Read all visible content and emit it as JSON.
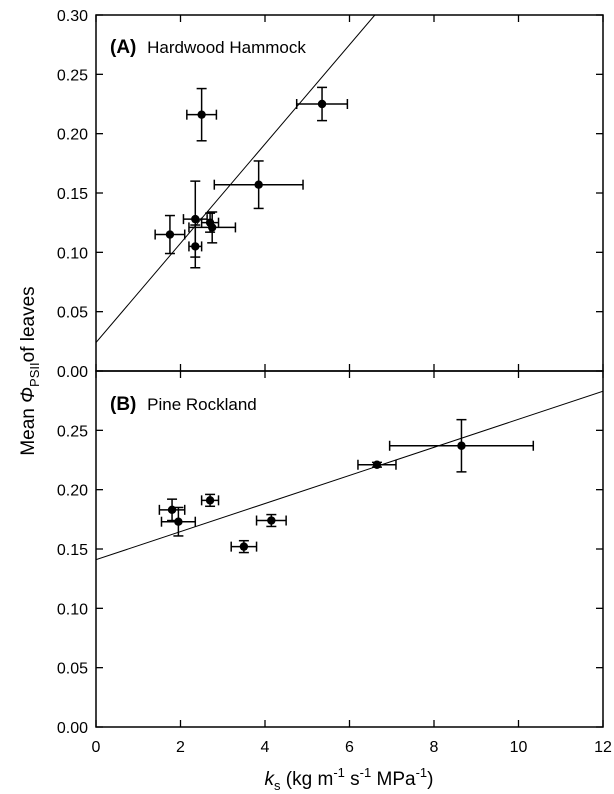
{
  "chart_data": [
    {
      "type": "scatter",
      "panel_letter": "(A)",
      "title": "Hardwood Hammock",
      "xlim": [
        0,
        12
      ],
      "ylim": [
        0,
        0.3
      ],
      "yticks": [
        "0.00",
        "0.05",
        "0.10",
        "0.15",
        "0.20",
        "0.25",
        "0.30"
      ],
      "points": [
        {
          "x": 1.75,
          "y": 0.115,
          "xerr": 0.35,
          "yerr": 0.016
        },
        {
          "x": 2.35,
          "y": 0.128,
          "xerr": 0.28,
          "yerr": 0.032
        },
        {
          "x": 2.35,
          "y": 0.105,
          "xerr": 0.15,
          "yerr": 0.018
        },
        {
          "x": 2.5,
          "y": 0.216,
          "xerr": 0.35,
          "yerr": 0.022
        },
        {
          "x": 2.7,
          "y": 0.125,
          "xerr": 0.2,
          "yerr": 0.008
        },
        {
          "x": 2.75,
          "y": 0.121,
          "xerr": 0.55,
          "yerr": 0.013
        },
        {
          "x": 3.85,
          "y": 0.157,
          "xerr": 1.05,
          "yerr": 0.02
        },
        {
          "x": 5.35,
          "y": 0.225,
          "xerr": 0.6,
          "yerr": 0.014
        }
      ],
      "fit_line": {
        "x": [
          0,
          6.6
        ],
        "y": [
          0.024,
          0.3
        ]
      }
    },
    {
      "type": "scatter",
      "panel_letter": "(B)",
      "title": "Pine Rockland",
      "xlim": [
        0,
        12
      ],
      "ylim": [
        0,
        0.3
      ],
      "yticks": [
        "0.00",
        "0.05",
        "0.10",
        "0.15",
        "0.20",
        "0.25"
      ],
      "points": [
        {
          "x": 1.8,
          "y": 0.183,
          "xerr": 0.3,
          "yerr": 0.009
        },
        {
          "x": 1.95,
          "y": 0.173,
          "xerr": 0.4,
          "yerr": 0.012
        },
        {
          "x": 2.7,
          "y": 0.191,
          "xerr": 0.2,
          "yerr": 0.005
        },
        {
          "x": 3.5,
          "y": 0.152,
          "xerr": 0.3,
          "yerr": 0.005
        },
        {
          "x": 4.15,
          "y": 0.174,
          "xerr": 0.35,
          "yerr": 0.005
        },
        {
          "x": 6.65,
          "y": 0.221,
          "xerr": 0.45,
          "yerr": 0.002
        },
        {
          "x": 8.65,
          "y": 0.237,
          "xerr": 1.7,
          "yerr": 0.022
        }
      ],
      "fit_line": {
        "x": [
          0,
          12
        ],
        "y": [
          0.141,
          0.283
        ]
      }
    }
  ],
  "x_axis": {
    "ticks": [
      "0",
      "2",
      "4",
      "6",
      "8",
      "10",
      "12"
    ],
    "label_k": "k",
    "label_k_sub": "s",
    "label_units_1": " (kg m",
    "label_exp_1": "-1",
    "label_units_2": " s",
    "label_exp_2": "-1",
    "label_units_3": " MPa",
    "label_exp_3": "-1",
    "label_units_4": ")"
  },
  "y_axis": {
    "label_mean": "Mean ",
    "label_phi": "Φ",
    "label_sub": "PSII",
    "label_rest": "of leaves"
  }
}
